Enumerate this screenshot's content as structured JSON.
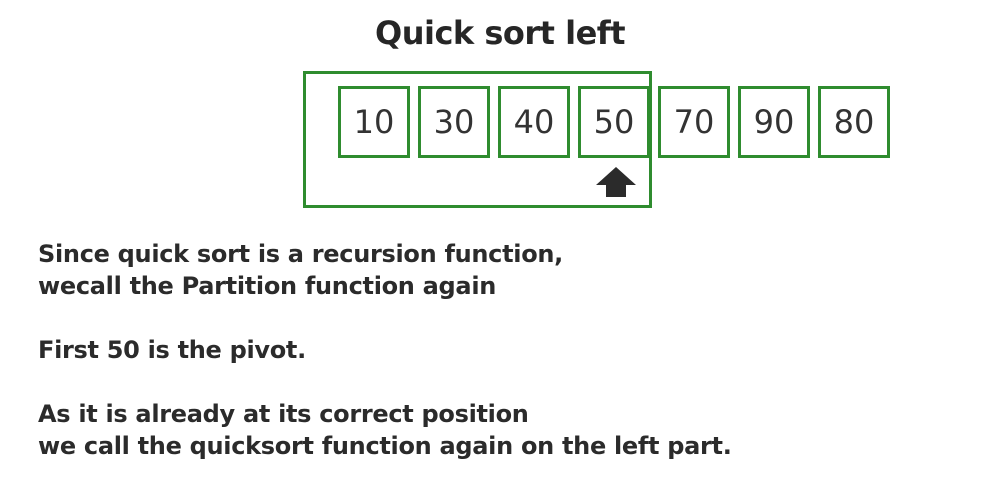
{
  "title": "Quick sort left",
  "array": {
    "cells": [
      "10",
      "30",
      "40",
      "50",
      "70",
      "90",
      "80"
    ]
  },
  "colors": {
    "border": "#2f8c2f",
    "text": "#2e2e2e",
    "arrow": "#2b2b2b"
  },
  "pivot": {
    "icon": "up-arrow-icon",
    "index": 3
  },
  "description": {
    "line1": "Since quick sort is a recursion function,",
    "line2": "wecall the Partition function again",
    "line3": "First 50 is the pivot.",
    "line4": "As it is already at its correct position",
    "line5": "we call the quicksort function again on the left part."
  }
}
